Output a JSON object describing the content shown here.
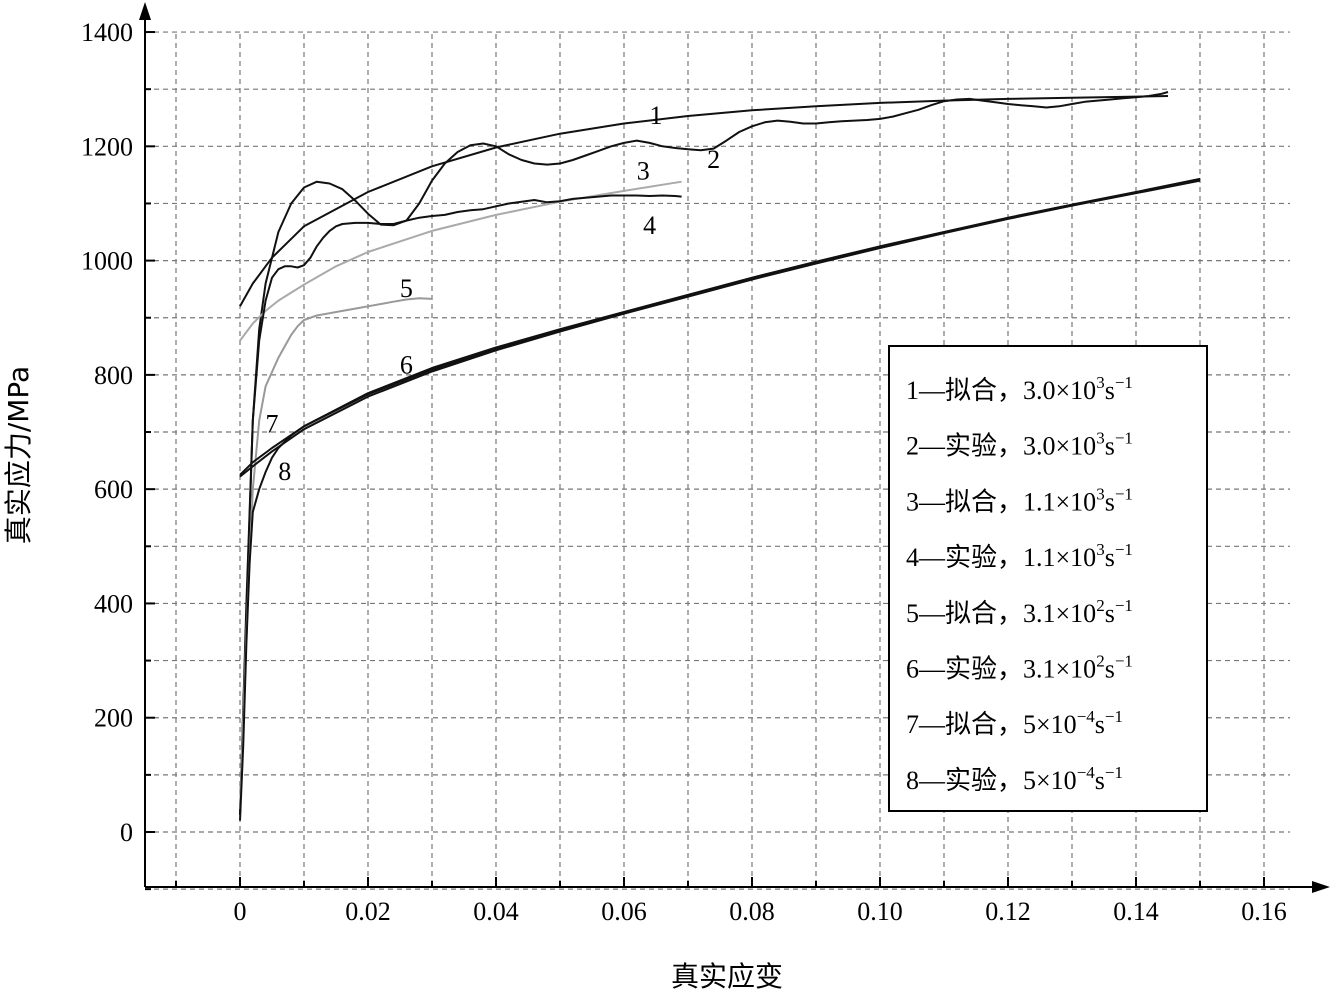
{
  "chart_data": {
    "type": "line",
    "title": "",
    "xlabel": "真实应变",
    "ylabel": "真实应力/MPa",
    "xlim": [
      -0.015,
      0.165
    ],
    "ylim": [
      -100,
      1400
    ],
    "xticks": [
      "0",
      "0.02",
      "0.04",
      "0.06",
      "0.08",
      "0.10",
      "0.12",
      "0.14",
      "0.16"
    ],
    "yticks": [
      "0",
      "200",
      "400",
      "600",
      "800",
      "1000",
      "1200",
      "1400"
    ],
    "grid": true,
    "legend_position": "bottom-right",
    "legend": [
      {
        "num": "1",
        "dash": "—",
        "kind": "拟合，",
        "coef": "3.0×10",
        "exp": "3",
        "unit": "s",
        "unit_exp": "−1"
      },
      {
        "num": "2",
        "dash": "—",
        "kind": "实验，",
        "coef": "3.0×10",
        "exp": "3",
        "unit": "s",
        "unit_exp": "−1"
      },
      {
        "num": "3",
        "dash": "—",
        "kind": "拟合，",
        "coef": "1.1×10",
        "exp": "3",
        "unit": "s",
        "unit_exp": "−1"
      },
      {
        "num": "4",
        "dash": "—",
        "kind": "实验，",
        "coef": "1.1×10",
        "exp": "3",
        "unit": "s",
        "unit_exp": "−1"
      },
      {
        "num": "5",
        "dash": "—",
        "kind": "拟合，",
        "coef": "3.1×10",
        "exp": "2",
        "unit": "s",
        "unit_exp": "−1"
      },
      {
        "num": "6",
        "dash": "—",
        "kind": "实验，",
        "coef": "3.1×10",
        "exp": "2",
        "unit": "s",
        "unit_exp": "−1"
      },
      {
        "num": "7",
        "dash": "—",
        "kind": "拟合，",
        "coef": "5×10",
        "exp": "−4",
        "unit": "s",
        "unit_exp": "−1"
      },
      {
        "num": "8",
        "dash": "—",
        "kind": "实验，",
        "coef": "5×10",
        "exp": "−4",
        "unit": "s",
        "unit_exp": "−1"
      }
    ],
    "series": [
      {
        "label": "1",
        "color": "#111111",
        "label_at": [
          0.065,
          1255
        ],
        "points": [
          [
            0,
            920
          ],
          [
            0.002,
            960
          ],
          [
            0.005,
            1005
          ],
          [
            0.01,
            1060
          ],
          [
            0.02,
            1120
          ],
          [
            0.03,
            1165
          ],
          [
            0.04,
            1198
          ],
          [
            0.05,
            1222
          ],
          [
            0.06,
            1240
          ],
          [
            0.07,
            1253
          ],
          [
            0.08,
            1263
          ],
          [
            0.09,
            1270
          ],
          [
            0.1,
            1276
          ],
          [
            0.11,
            1280
          ],
          [
            0.12,
            1283
          ],
          [
            0.13,
            1285
          ],
          [
            0.14,
            1287
          ],
          [
            0.145,
            1288
          ]
        ]
      },
      {
        "label": "2",
        "color": "#111111",
        "label_at": [
          0.074,
          1178
        ],
        "points": [
          [
            0,
            30
          ],
          [
            0.001,
            380
          ],
          [
            0.002,
            720
          ],
          [
            0.003,
            880
          ],
          [
            0.004,
            960
          ],
          [
            0.006,
            1050
          ],
          [
            0.008,
            1100
          ],
          [
            0.01,
            1128
          ],
          [
            0.012,
            1138
          ],
          [
            0.014,
            1135
          ],
          [
            0.016,
            1125
          ],
          [
            0.018,
            1105
          ],
          [
            0.02,
            1082
          ],
          [
            0.022,
            1063
          ],
          [
            0.024,
            1062
          ],
          [
            0.026,
            1070
          ],
          [
            0.028,
            1100
          ],
          [
            0.03,
            1140
          ],
          [
            0.032,
            1170
          ],
          [
            0.034,
            1190
          ],
          [
            0.036,
            1202
          ],
          [
            0.038,
            1205
          ],
          [
            0.04,
            1200
          ],
          [
            0.042,
            1186
          ],
          [
            0.044,
            1176
          ],
          [
            0.046,
            1170
          ],
          [
            0.048,
            1168
          ],
          [
            0.05,
            1170
          ],
          [
            0.052,
            1176
          ],
          [
            0.054,
            1184
          ],
          [
            0.056,
            1192
          ],
          [
            0.058,
            1200
          ],
          [
            0.06,
            1206
          ],
          [
            0.062,
            1210
          ],
          [
            0.064,
            1206
          ],
          [
            0.066,
            1200
          ],
          [
            0.068,
            1197
          ],
          [
            0.07,
            1195
          ],
          [
            0.072,
            1193
          ],
          [
            0.074,
            1196
          ],
          [
            0.076,
            1210
          ],
          [
            0.078,
            1225
          ],
          [
            0.08,
            1235
          ],
          [
            0.082,
            1242
          ],
          [
            0.084,
            1245
          ],
          [
            0.086,
            1243
          ],
          [
            0.088,
            1240
          ],
          [
            0.09,
            1240
          ],
          [
            0.092,
            1242
          ],
          [
            0.094,
            1244
          ],
          [
            0.096,
            1245
          ],
          [
            0.098,
            1246
          ],
          [
            0.1,
            1248
          ],
          [
            0.102,
            1252
          ],
          [
            0.104,
            1258
          ],
          [
            0.106,
            1264
          ],
          [
            0.108,
            1272
          ],
          [
            0.11,
            1279
          ],
          [
            0.112,
            1282
          ],
          [
            0.114,
            1283
          ],
          [
            0.116,
            1280
          ],
          [
            0.118,
            1277
          ],
          [
            0.12,
            1274
          ],
          [
            0.122,
            1272
          ],
          [
            0.124,
            1270
          ],
          [
            0.126,
            1268
          ],
          [
            0.128,
            1270
          ],
          [
            0.13,
            1274
          ],
          [
            0.132,
            1278
          ],
          [
            0.134,
            1280
          ],
          [
            0.136,
            1282
          ],
          [
            0.138,
            1284
          ],
          [
            0.14,
            1286
          ],
          [
            0.142,
            1288
          ],
          [
            0.144,
            1292
          ],
          [
            0.145,
            1295
          ]
        ]
      },
      {
        "label": "3",
        "color": "#aaaaaa",
        "label_at": [
          0.063,
          1158
        ],
        "points": [
          [
            0,
            860
          ],
          [
            0.002,
            890
          ],
          [
            0.004,
            912
          ],
          [
            0.006,
            930
          ],
          [
            0.01,
            958
          ],
          [
            0.015,
            990
          ],
          [
            0.02,
            1015
          ],
          [
            0.03,
            1052
          ],
          [
            0.04,
            1080
          ],
          [
            0.05,
            1103
          ],
          [
            0.06,
            1122
          ],
          [
            0.069,
            1138
          ]
        ]
      },
      {
        "label": "4",
        "color": "#111111",
        "label_at": [
          0.064,
          1062
        ],
        "points": [
          [
            0,
            30
          ],
          [
            0.001,
            400
          ],
          [
            0.002,
            720
          ],
          [
            0.003,
            860
          ],
          [
            0.004,
            930
          ],
          [
            0.005,
            970
          ],
          [
            0.006,
            985
          ],
          [
            0.007,
            990
          ],
          [
            0.008,
            990
          ],
          [
            0.009,
            988
          ],
          [
            0.01,
            992
          ],
          [
            0.011,
            1005
          ],
          [
            0.012,
            1025
          ],
          [
            0.013,
            1040
          ],
          [
            0.014,
            1052
          ],
          [
            0.015,
            1060
          ],
          [
            0.016,
            1064
          ],
          [
            0.018,
            1066
          ],
          [
            0.02,
            1066
          ],
          [
            0.022,
            1064
          ],
          [
            0.024,
            1064
          ],
          [
            0.026,
            1070
          ],
          [
            0.028,
            1075
          ],
          [
            0.03,
            1078
          ],
          [
            0.032,
            1080
          ],
          [
            0.034,
            1085
          ],
          [
            0.036,
            1088
          ],
          [
            0.038,
            1090
          ],
          [
            0.04,
            1095
          ],
          [
            0.042,
            1100
          ],
          [
            0.044,
            1103
          ],
          [
            0.046,
            1106
          ],
          [
            0.048,
            1102
          ],
          [
            0.05,
            1104
          ],
          [
            0.052,
            1108
          ],
          [
            0.054,
            1110
          ],
          [
            0.056,
            1112
          ],
          [
            0.058,
            1114
          ],
          [
            0.06,
            1114
          ],
          [
            0.062,
            1114
          ],
          [
            0.064,
            1113
          ],
          [
            0.066,
            1114
          ],
          [
            0.068,
            1113
          ],
          [
            0.069,
            1112
          ]
        ]
      },
      {
        "label": "5",
        "color": "#999999",
        "label_at": [
          0.026,
          952
        ],
        "points": [
          [
            0,
            40
          ],
          [
            0.001,
            350
          ],
          [
            0.002,
            600
          ],
          [
            0.003,
            720
          ],
          [
            0.004,
            780
          ],
          [
            0.005,
            805
          ],
          [
            0.006,
            830
          ],
          [
            0.007,
            850
          ],
          [
            0.008,
            870
          ],
          [
            0.009,
            885
          ],
          [
            0.01,
            896
          ],
          [
            0.012,
            904
          ],
          [
            0.014,
            908
          ],
          [
            0.016,
            912
          ],
          [
            0.018,
            916
          ],
          [
            0.02,
            920
          ],
          [
            0.022,
            924
          ],
          [
            0.024,
            928
          ],
          [
            0.026,
            932
          ],
          [
            0.028,
            934
          ],
          [
            0.03,
            933
          ]
        ]
      },
      {
        "label": "6",
        "color": "#111111",
        "label_at": [
          0.026,
          818
        ],
        "points": [
          [
            0,
            625
          ],
          [
            0.002,
            647
          ],
          [
            0.005,
            672
          ],
          [
            0.01,
            710
          ],
          [
            0.02,
            768
          ],
          [
            0.03,
            812
          ],
          [
            0.04,
            848
          ],
          [
            0.05,
            880
          ],
          [
            0.06,
            910
          ],
          [
            0.07,
            940
          ],
          [
            0.08,
            970
          ],
          [
            0.09,
            998
          ],
          [
            0.1,
            1025
          ],
          [
            0.11,
            1050
          ],
          [
            0.12,
            1075
          ],
          [
            0.13,
            1098
          ],
          [
            0.14,
            1120
          ],
          [
            0.15,
            1143
          ]
        ]
      },
      {
        "label": "7",
        "color": "#111111",
        "label_at": [
          0.005,
          715
        ],
        "points": [
          [
            0,
            622
          ],
          [
            0.002,
            640
          ],
          [
            0.005,
            666
          ],
          [
            0.01,
            705
          ],
          [
            0.02,
            762
          ],
          [
            0.03,
            806
          ],
          [
            0.04,
            843
          ],
          [
            0.05,
            876
          ],
          [
            0.06,
            907
          ],
          [
            0.07,
            937
          ],
          [
            0.08,
            967
          ],
          [
            0.09,
            995
          ],
          [
            0.1,
            1022
          ],
          [
            0.11,
            1048
          ],
          [
            0.12,
            1073
          ],
          [
            0.13,
            1096
          ],
          [
            0.14,
            1118
          ],
          [
            0.15,
            1140
          ]
        ]
      },
      {
        "label": "8",
        "color": "#111111",
        "label_at": [
          0.007,
          632
        ],
        "points": [
          [
            0,
            20
          ],
          [
            0.0005,
            150
          ],
          [
            0.001,
            330
          ],
          [
            0.0015,
            470
          ],
          [
            0.002,
            560
          ],
          [
            0.003,
            600
          ],
          [
            0.004,
            630
          ],
          [
            0.005,
            655
          ],
          [
            0.006,
            672
          ],
          [
            0.008,
            694
          ],
          [
            0.01,
            710
          ],
          [
            0.02,
            766
          ],
          [
            0.03,
            809
          ],
          [
            0.04,
            845
          ],
          [
            0.05,
            878
          ],
          [
            0.06,
            908
          ],
          [
            0.07,
            938
          ],
          [
            0.08,
            968
          ],
          [
            0.09,
            996
          ],
          [
            0.1,
            1024
          ],
          [
            0.11,
            1049
          ],
          [
            0.12,
            1074
          ],
          [
            0.13,
            1097
          ],
          [
            0.14,
            1119
          ],
          [
            0.15,
            1142
          ]
        ]
      }
    ]
  }
}
